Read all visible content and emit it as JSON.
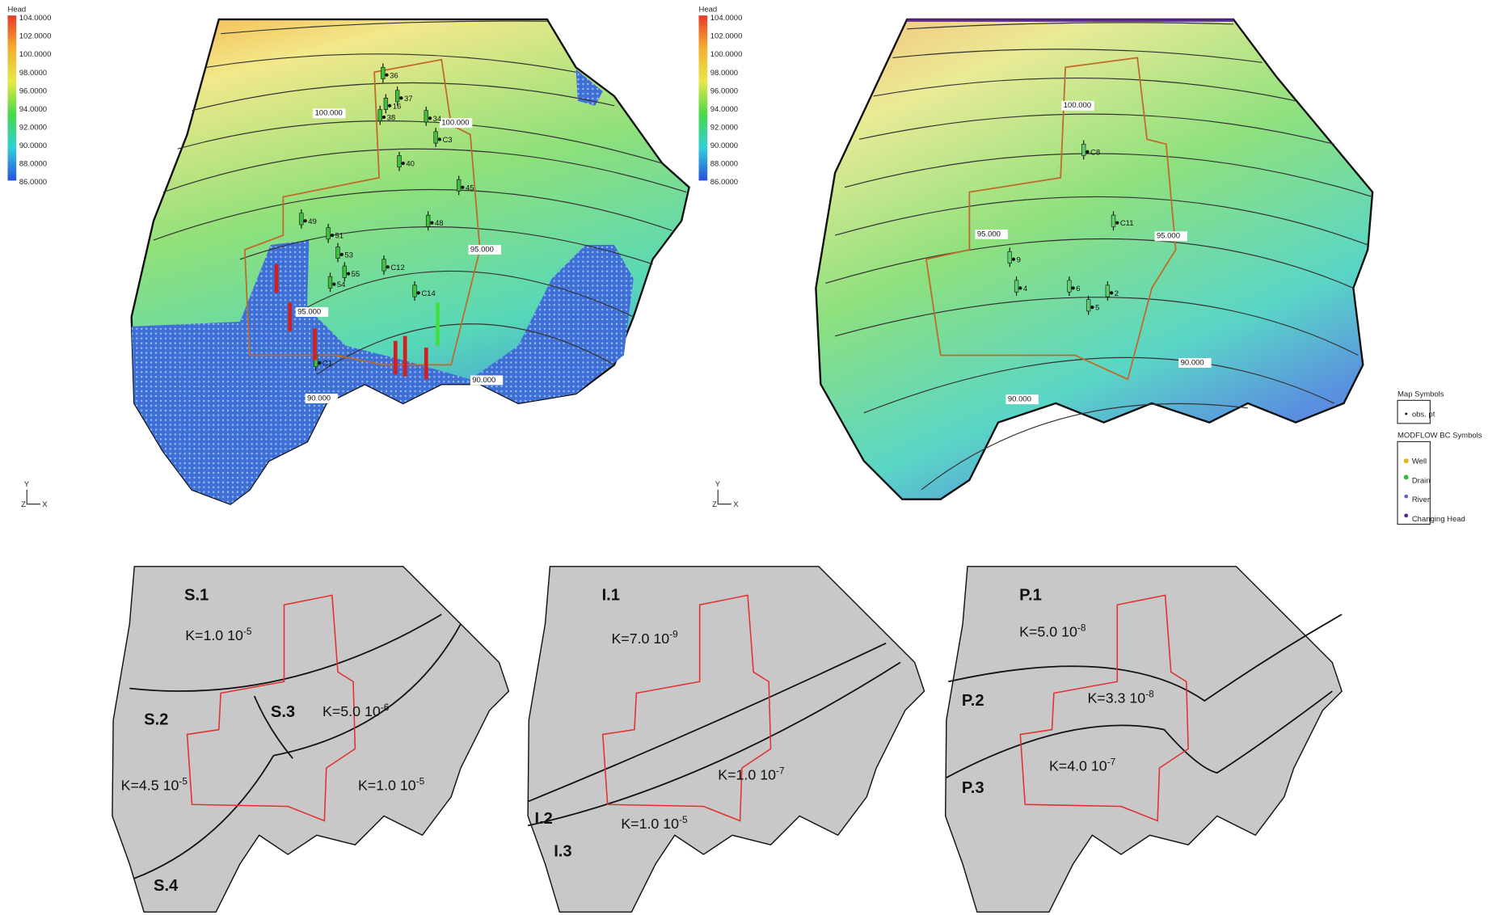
{
  "left_map": {
    "legend_title": "Head",
    "legend_labels": [
      "104.0000",
      "102.0000",
      "100.0000",
      "98.0000",
      "96.0000",
      "94.0000",
      "92.0000",
      "90.0000",
      "88.0000",
      "86.0000"
    ],
    "contour_labels": [
      "100.000",
      "100.000",
      "95.000",
      "95.000",
      "90.000",
      "90.000"
    ],
    "well_labels": [
      "36",
      "37",
      "16",
      "38",
      "34",
      "C3",
      "40",
      "45",
      "48",
      "49",
      "51",
      "53",
      "55",
      "54",
      "C12",
      "C14",
      "C1"
    ],
    "axis_labels": [
      "Y",
      "Z",
      "X"
    ]
  },
  "right_map": {
    "legend_title": "Head",
    "legend_labels": [
      "104.0000",
      "102.0000",
      "100.0000",
      "98.0000",
      "96.0000",
      "94.0000",
      "92.0000",
      "90.0000",
      "88.0000",
      "86.0000"
    ],
    "contour_labels": [
      "100.000",
      "95.000",
      "95.000",
      "90.000",
      "90.000"
    ],
    "well_labels": [
      "C8",
      "C11",
      "9",
      "4",
      "6",
      "5",
      "2"
    ],
    "axis_labels": [
      "Y",
      "Z",
      "X"
    ]
  },
  "symbols_legend": {
    "map_title": "Map Symbols",
    "map_items": [
      "obs. pt"
    ],
    "bc_title": "MODFLOW BC Symbols",
    "bc_items": [
      "Well",
      "Drain",
      "River",
      "Changing Head"
    ]
  },
  "zone_maps": [
    {
      "zones": [
        "S.1",
        "S.2",
        "S.3",
        "S.4"
      ],
      "k_labels": [
        {
          "base": "K=1.0 10",
          "exp": "-5"
        },
        {
          "base": "K=5.0 10",
          "exp": "-6"
        },
        {
          "base": "K=4.5 10",
          "exp": "-5"
        },
        {
          "base": "K=1.0 10",
          "exp": "-5"
        }
      ]
    },
    {
      "zones": [
        "I.1",
        "I.2",
        "I.3"
      ],
      "k_labels": [
        {
          "base": "K=7.0 10",
          "exp": "-9"
        },
        {
          "base": "K=1.0 10",
          "exp": "-7"
        },
        {
          "base": "K=1.0 10",
          "exp": "-5"
        }
      ]
    },
    {
      "zones": [
        "P.1",
        "P.2",
        "P.3"
      ],
      "k_labels": [
        {
          "base": "K=5.0 10",
          "exp": "-8"
        },
        {
          "base": "K=3.3 10",
          "exp": "-8"
        },
        {
          "base": "K=4.0 10",
          "exp": "-7"
        }
      ]
    }
  ]
}
